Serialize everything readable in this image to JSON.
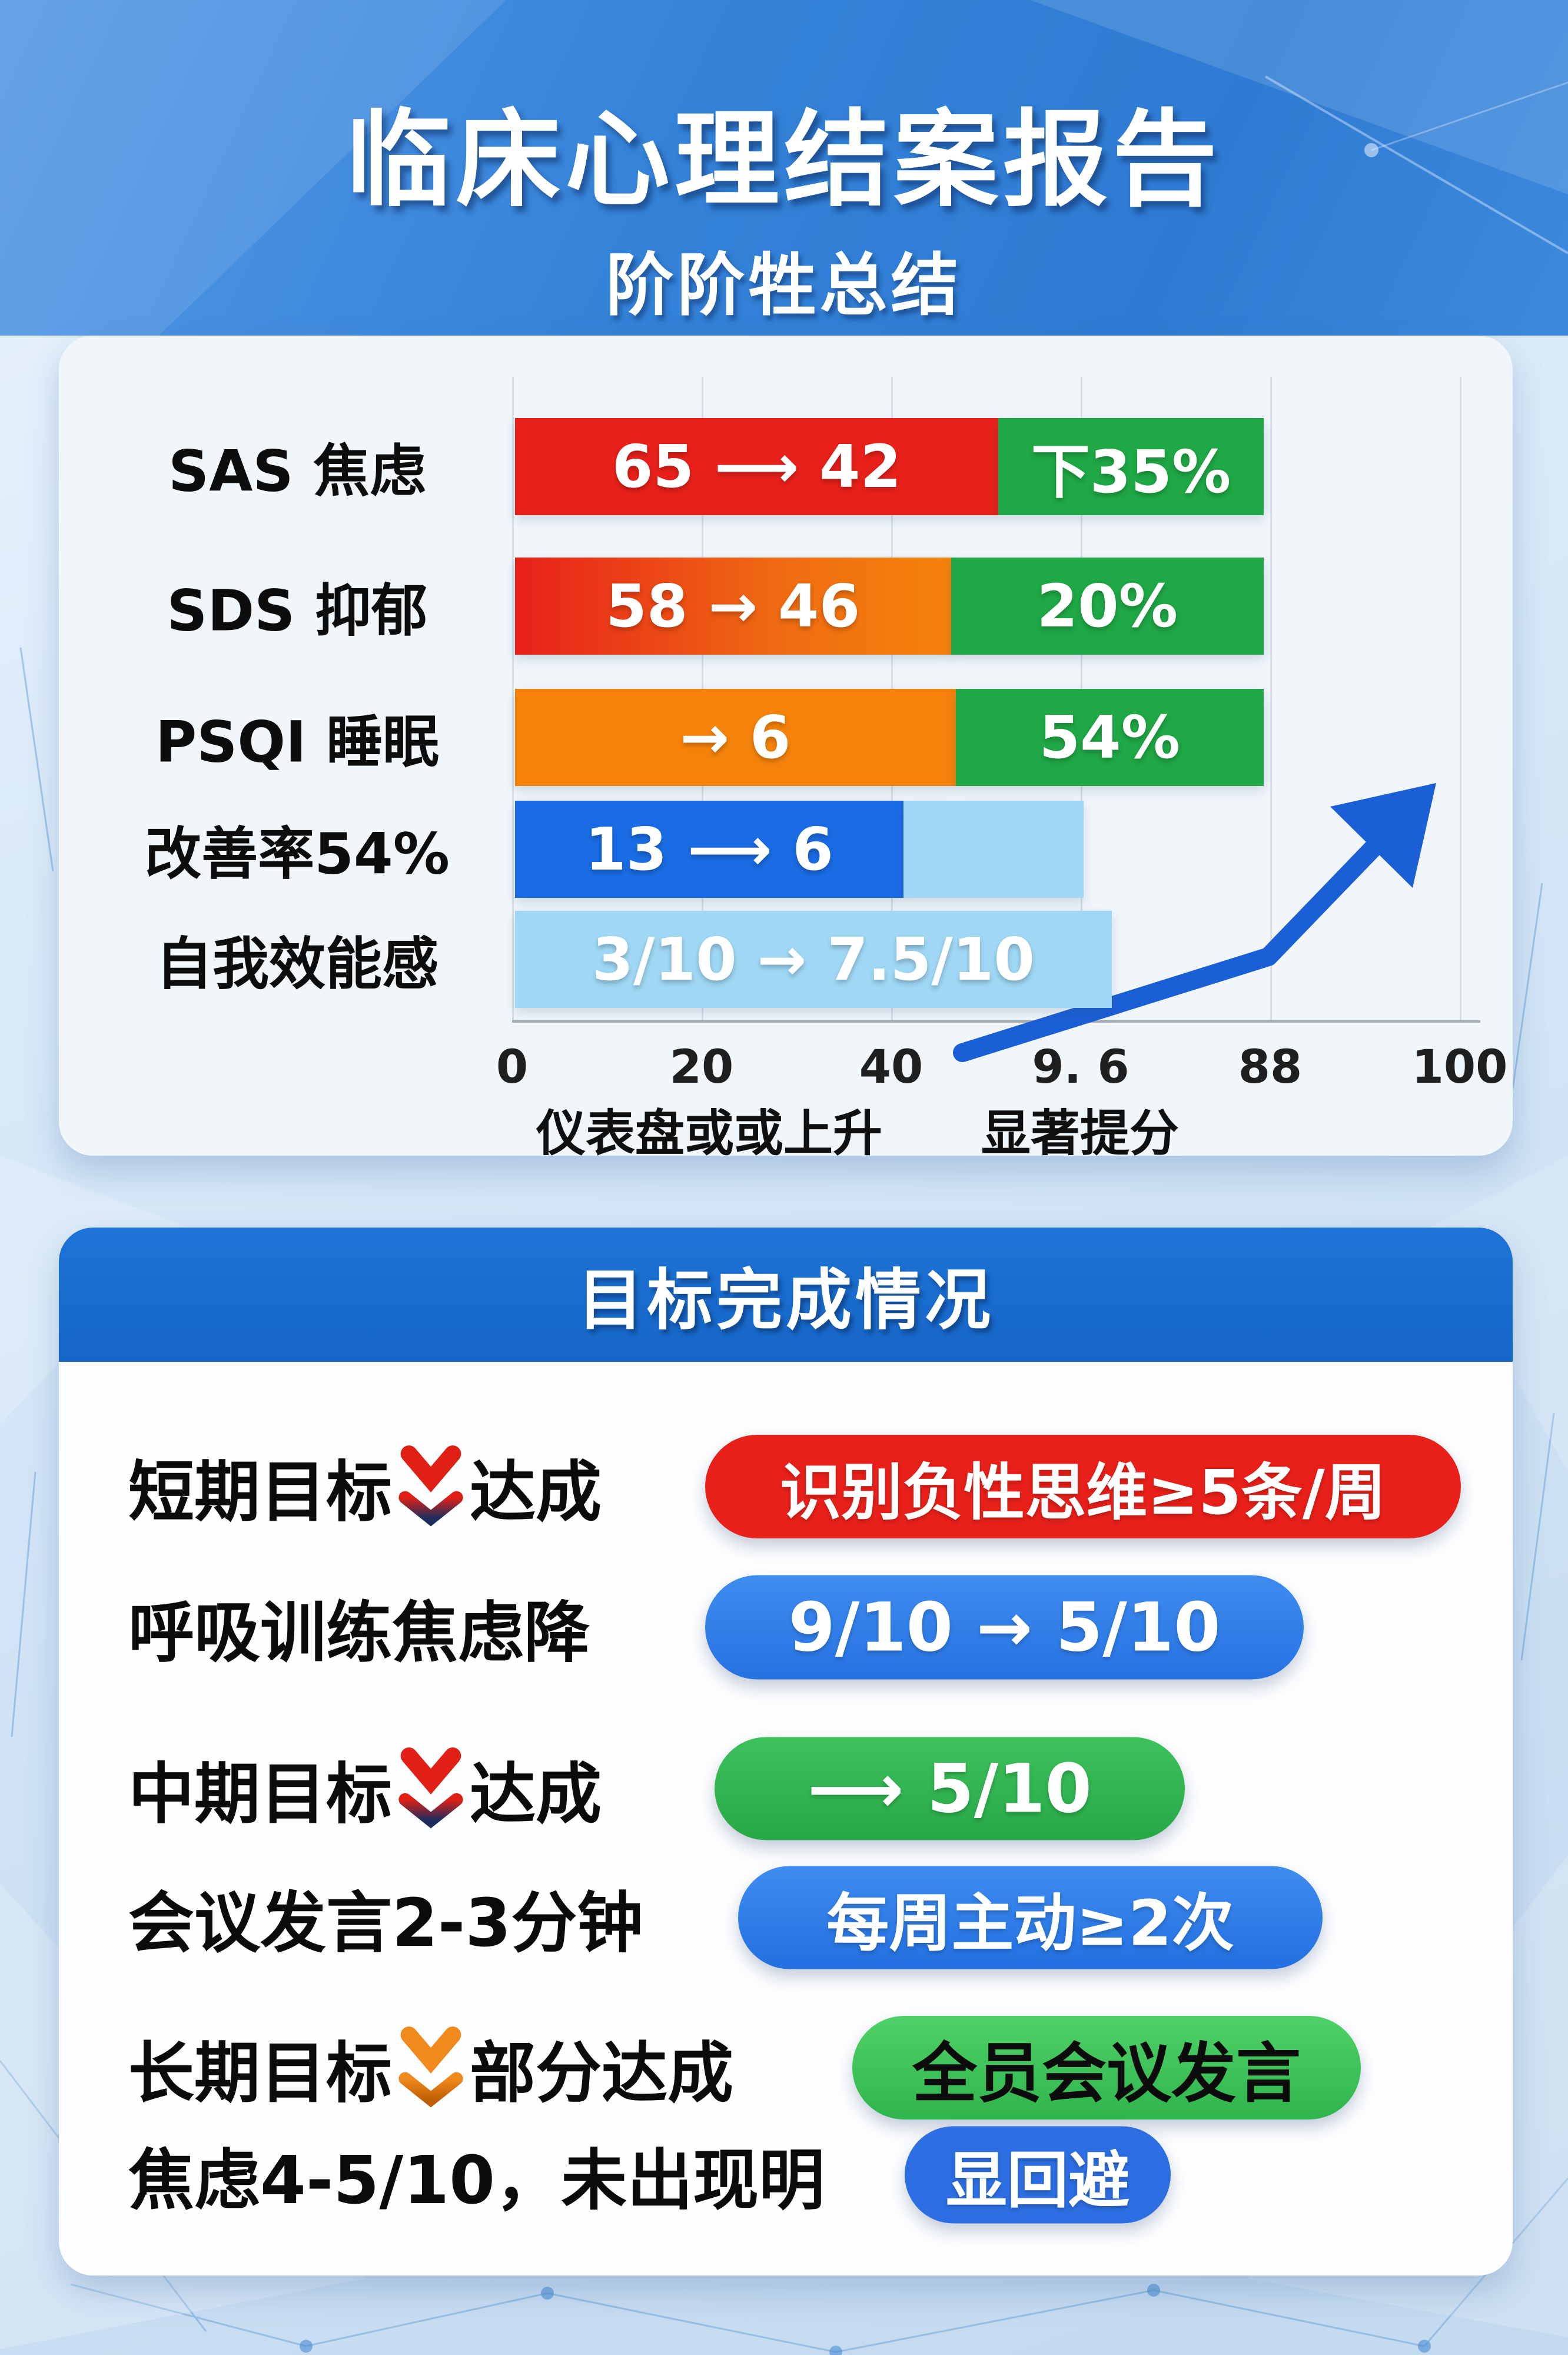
{
  "header": {
    "title": "临床心理结案报告",
    "subtitle": "阶阶牲总结"
  },
  "chart_data": {
    "type": "bar",
    "orientation": "horizontal",
    "axis": {
      "min": 0,
      "max": 100,
      "ticks": [
        "0",
        "20",
        "40",
        "9. 6",
        "88",
        "100"
      ],
      "grid": true
    },
    "rows": [
      {
        "label": "SAS 焦虑",
        "segments": [
          {
            "span": [
              0,
              51
            ],
            "color": "red",
            "text": "65 ⟶ 42"
          },
          {
            "span": [
              51,
              79
            ],
            "color": "green",
            "text": "下35%"
          }
        ]
      },
      {
        "label": "SDS 抑郁",
        "segments": [
          {
            "span": [
              0,
              46
            ],
            "color": "redOrange",
            "text": "58 → 46"
          },
          {
            "span": [
              46,
              79
            ],
            "color": "green",
            "text": "20%"
          }
        ]
      },
      {
        "label": "PSQI 睡眠",
        "segments": [
          {
            "span": [
              0,
              46.5
            ],
            "color": "orange",
            "text": "→ 6"
          },
          {
            "span": [
              46.5,
              79
            ],
            "color": "green",
            "text": "54%"
          }
        ]
      },
      {
        "label": "改善率54%",
        "segments": [
          {
            "span": [
              0,
              41
            ],
            "color": "blue",
            "text": "13 ⟶ 6"
          },
          {
            "span": [
              41,
              60
            ],
            "color": "lightBlue",
            "text": ""
          }
        ]
      },
      {
        "label": "自我效能感",
        "segments": [
          {
            "span": [
              0,
              63
            ],
            "color": "lightBlue",
            "text": "3/10 → 7.5/10"
          }
        ]
      }
    ],
    "captions": [
      "仪表盘或或上升",
      "显著提分"
    ],
    "colors": {
      "red": "#e8201a",
      "redOrange": "linear-gradient(90deg,#e8201a 0%,#ef6a12 60%,#f5830b 100%)",
      "orange": "#f5830b",
      "green": "#1fa845",
      "blue": "#1a6ce4",
      "lightBlue": "#9fd7f4",
      "arrow": "#1b5fd6"
    }
  },
  "goals": {
    "header": "目标完成情况",
    "rows": [
      {
        "label_before": "短期目标",
        "icon": "double-chevron-down-red",
        "label_after": "达成",
        "pill": {
          "text": "识别负性思维≥5条/周",
          "color": "red"
        }
      },
      {
        "label": "呼吸训练焦虑降",
        "pill": {
          "text": "9/10 → 5/10",
          "color": "blue"
        }
      },
      {
        "label_before": "中期目标",
        "icon": "double-chevron-down-red",
        "label_after": "达成",
        "pill": {
          "text": "⟶ 5/10",
          "color": "green"
        }
      },
      {
        "label": "会议发言2-3分钟",
        "pill": {
          "text": "每周主动≥2次",
          "color": "blue"
        }
      },
      {
        "label_before": "长期目标",
        "icon": "double-chevron-down-orange",
        "label_after": "部分达成",
        "pill": {
          "text": "全员会议发言",
          "color": "green-black-text"
        }
      },
      {
        "label": "焦虑4-5/10，未出现明",
        "pill": {
          "text": "显回避",
          "color": "blue"
        }
      }
    ]
  },
  "palette": {
    "banner_blue": "#3382d8",
    "goal_header_blue": "#1769cd",
    "card_bg": "#f1f6fb",
    "page_bg": "#d6e7f7"
  }
}
